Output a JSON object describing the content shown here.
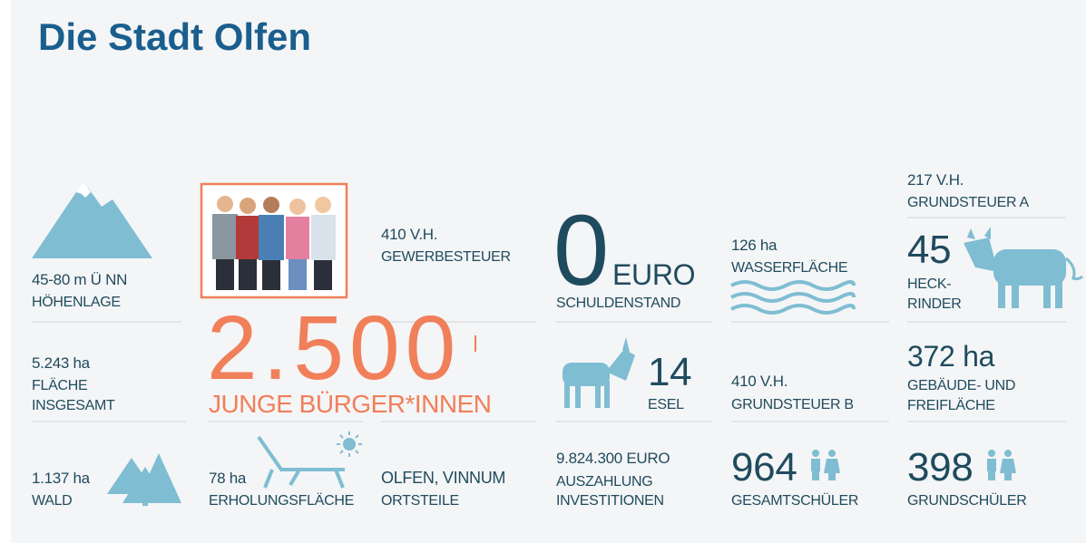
{
  "title": "Die Stadt Olfen",
  "cells": [
    {
      "lines": [
        "45-80 m Ü NN",
        "HÖHENLAGE"
      ]
    },
    {
      "lines": [
        "5.243 ha",
        "FLÄCHE",
        "INSGESAMT"
      ]
    },
    {
      "lines": [
        "1.137 ha",
        "WALD"
      ]
    },
    {
      "lines": [
        "2.500",
        "JUNGE BÜRGER*INNEN"
      ]
    },
    {
      "lines": [
        "78 ha",
        "ERHOLUNGSFLÄCHE"
      ]
    },
    {
      "lines": [
        "410 V.H.",
        "GEWERBESTEUER"
      ]
    },
    {
      "lines": [
        "OLFEN, VINNUM",
        "ORTSTEILE"
      ]
    },
    {
      "lines": [
        "0",
        "EURO",
        "SCHULDENSTAND"
      ]
    },
    {
      "lines": [
        "14",
        "ESEL"
      ]
    },
    {
      "lines": [
        "9.824.300 EURO",
        "AUSZAHLUNG",
        "INVESTITIONEN"
      ]
    },
    {
      "lines": [
        "126 ha",
        "WASSERFLÄCHE"
      ]
    },
    {
      "lines": [
        "410 V.H.",
        "GRUNDSTEUER B"
      ]
    },
    {
      "lines": [
        "964",
        "GESAMTSCHÜLER"
      ]
    },
    {
      "lines": [
        "217 V.H.",
        "GRUNDSTEUER A"
      ]
    },
    {
      "lines": [
        "45",
        "HECK-",
        "RINDER"
      ]
    },
    {
      "lines": [
        "372 ha",
        "GEBÄUDE- UND",
        "FREIFLÄCHE"
      ]
    },
    {
      "lines": [
        "398",
        "GRUNDSCHÜLER"
      ]
    }
  ]
}
